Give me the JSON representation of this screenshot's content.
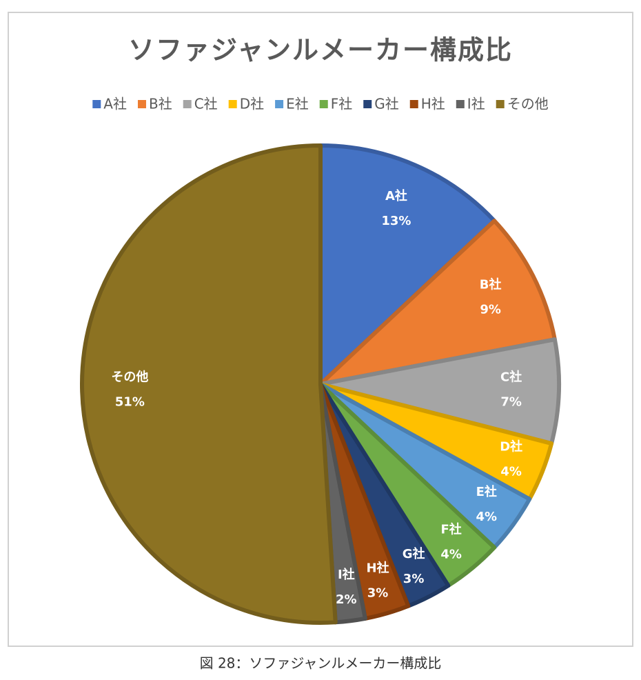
{
  "chart_data": {
    "type": "pie",
    "title": "ソファジャンルメーカー構成比",
    "categories": [
      "A社",
      "B社",
      "C社",
      "D社",
      "E社",
      "F社",
      "G社",
      "H社",
      "I社",
      "その他"
    ],
    "values": [
      13,
      9,
      7,
      4,
      4,
      4,
      3,
      3,
      2,
      51
    ],
    "value_labels": [
      "13%",
      "9%",
      "7%",
      "4%",
      "4%",
      "4%",
      "3%",
      "3%",
      "2%",
      "51%"
    ],
    "colors": [
      "#4472c4",
      "#ed7d31",
      "#a5a5a5",
      "#ffc000",
      "#5b9bd5",
      "#70ad47",
      "#264478",
      "#9e480e",
      "#636363",
      "#8c7222"
    ],
    "legend": "top",
    "caption": "図 28：ソファジャンルメーカー構成比"
  }
}
